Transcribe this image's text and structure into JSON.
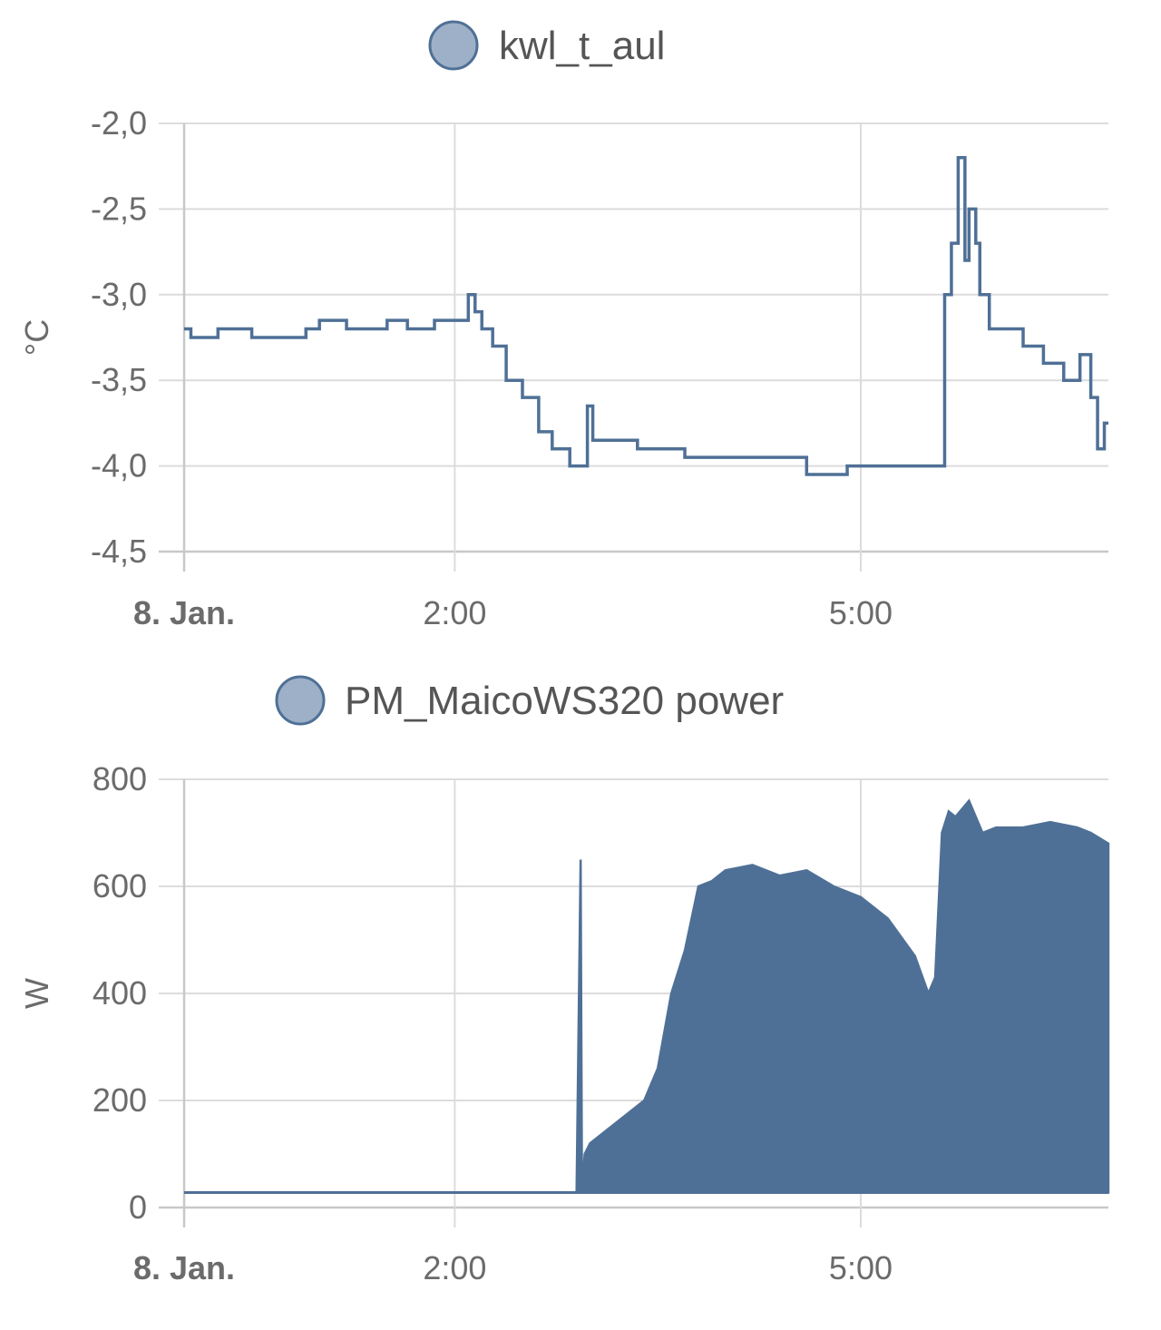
{
  "chart_data": [
    {
      "type": "line",
      "legend": [
        "kwl_t_aul"
      ],
      "ylabel": "°C",
      "ylim": [
        -4.5,
        -2.0
      ],
      "yticks": [
        "-2,0",
        "-2,5",
        "-3,0",
        "-3,5",
        "-4,0",
        "-4,5"
      ],
      "yticks_values": [
        -2.0,
        -2.5,
        -3.0,
        -3.5,
        -4.0,
        -4.5
      ],
      "xticks": [
        "8. Jan.",
        "2:00",
        "5:00"
      ],
      "xticks_hours": [
        0,
        2,
        5
      ],
      "xlim_hours": [
        0,
        6.83
      ],
      "grid": true,
      "series_color": "#4f7096",
      "legend_fill": "#9db0c7",
      "series": [
        {
          "name": "kwl_t_aul",
          "step": true,
          "x_hours": [
            0,
            0.05,
            0.25,
            0.5,
            0.9,
            1.0,
            1.2,
            1.5,
            1.65,
            1.85,
            2.1,
            2.15,
            2.2,
            2.28,
            2.38,
            2.5,
            2.62,
            2.72,
            2.85,
            2.95,
            2.98,
            3.02,
            3.1,
            3.35,
            3.5,
            3.7,
            4.0,
            4.3,
            4.6,
            4.9,
            5.2,
            5.5,
            5.62,
            5.67,
            5.72,
            5.77,
            5.8,
            5.85,
            5.88,
            5.95,
            6.05,
            6.2,
            6.35,
            6.5,
            6.62,
            6.7,
            6.75,
            6.8,
            6.83
          ],
          "y": [
            -3.2,
            -3.25,
            -3.2,
            -3.25,
            -3.2,
            -3.15,
            -3.2,
            -3.15,
            -3.2,
            -3.15,
            -3.0,
            -3.1,
            -3.2,
            -3.3,
            -3.5,
            -3.6,
            -3.8,
            -3.9,
            -4.0,
            -4.0,
            -3.65,
            -3.85,
            -3.85,
            -3.9,
            -3.9,
            -3.95,
            -3.95,
            -3.95,
            -4.05,
            -4.0,
            -4.0,
            -4.0,
            -3.0,
            -2.7,
            -2.2,
            -2.8,
            -2.5,
            -2.7,
            -3.0,
            -3.2,
            -3.2,
            -3.3,
            -3.4,
            -3.5,
            -3.35,
            -3.6,
            -3.9,
            -3.75,
            -3.75
          ]
        }
      ]
    },
    {
      "type": "area",
      "legend": [
        "PM_MaicoWS320 power"
      ],
      "ylabel": "W",
      "ylim": [
        0,
        800
      ],
      "yticks": [
        "800",
        "600",
        "400",
        "200",
        "0"
      ],
      "yticks_values": [
        800,
        600,
        400,
        200,
        0
      ],
      "xticks": [
        "8. Jan.",
        "2:00",
        "5:00"
      ],
      "xticks_hours": [
        0,
        2,
        5
      ],
      "xlim_hours": [
        0,
        6.83
      ],
      "grid": true,
      "series_color": "#4f7096",
      "legend_fill": "#9db0c7",
      "series": [
        {
          "name": "PM_MaicoWS320 power",
          "baseline": 28,
          "x_hours": [
            0,
            2.9,
            2.93,
            2.94,
            2.96,
            3.0,
            3.2,
            3.4,
            3.5,
            3.6,
            3.7,
            3.8,
            3.9,
            4.0,
            4.2,
            4.4,
            4.6,
            4.8,
            5.0,
            5.2,
            5.4,
            5.5,
            5.55,
            5.6,
            5.65,
            5.7,
            5.8,
            5.9,
            6.0,
            6.2,
            6.4,
            6.6,
            6.7,
            6.83
          ],
          "y": [
            28,
            28,
            650,
            28,
            100,
            120,
            160,
            200,
            260,
            400,
            480,
            600,
            610,
            630,
            640,
            620,
            630,
            600,
            580,
            540,
            470,
            400,
            430,
            700,
            740,
            730,
            760,
            700,
            710,
            710,
            720,
            710,
            700,
            680
          ]
        }
      ]
    }
  ]
}
